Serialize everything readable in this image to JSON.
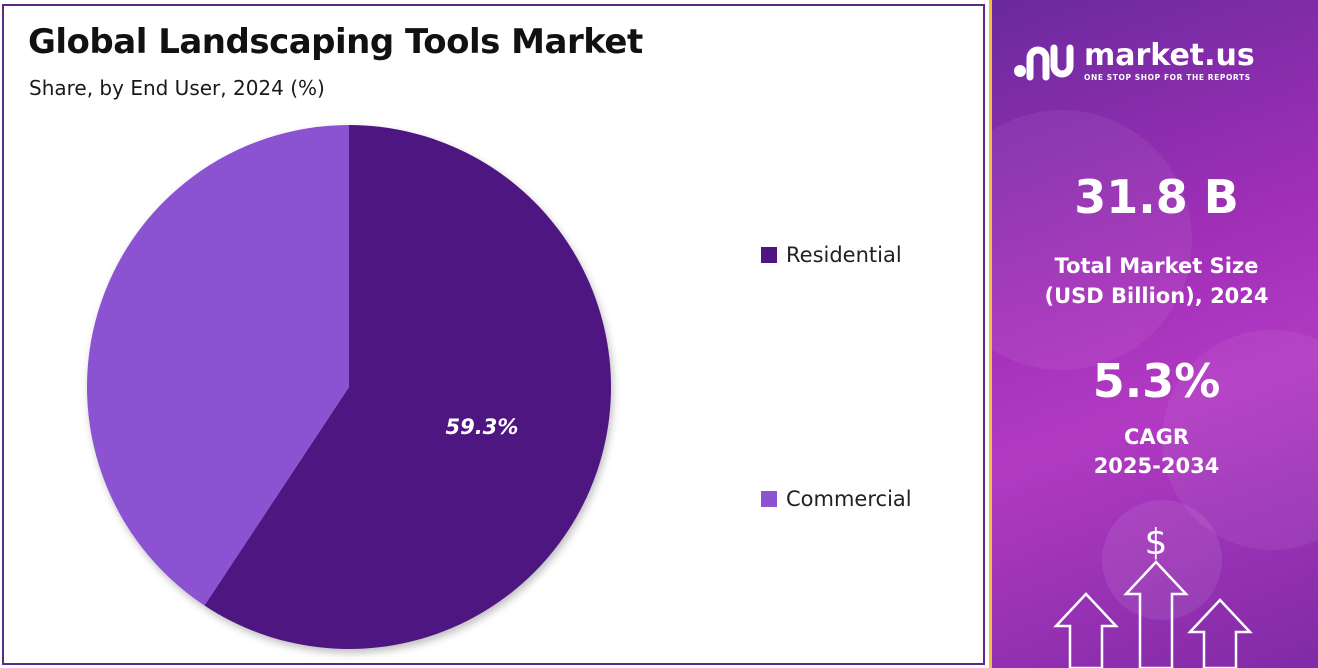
{
  "chart_data": {
    "type": "pie",
    "title": "Global Landscaping Tools Market",
    "subtitle": "Share, by End User, 2024 (%)",
    "categories": [
      "Residential",
      "Commercial"
    ],
    "values": [
      59.3,
      40.7
    ],
    "data_labels": [
      "59.3%",
      ""
    ],
    "colors": [
      "#4e1580",
      "#8b52d1"
    ],
    "legend_position": "right"
  },
  "side_panel": {
    "brand_name": "market.us",
    "brand_tagline": "ONE STOP SHOP FOR THE REPORTS",
    "market_size_value": "31.8 B",
    "market_size_label_line1": "Total Market Size",
    "market_size_label_line2": "(USD Billion), 2024",
    "cagr_value": "5.3%",
    "cagr_label_line1": "CAGR",
    "cagr_label_line2": "2025-2034",
    "dollar_symbol": "$",
    "icons": [
      "market-us-logo-icon",
      "dollar-icon",
      "up-arrow-icon"
    ]
  }
}
